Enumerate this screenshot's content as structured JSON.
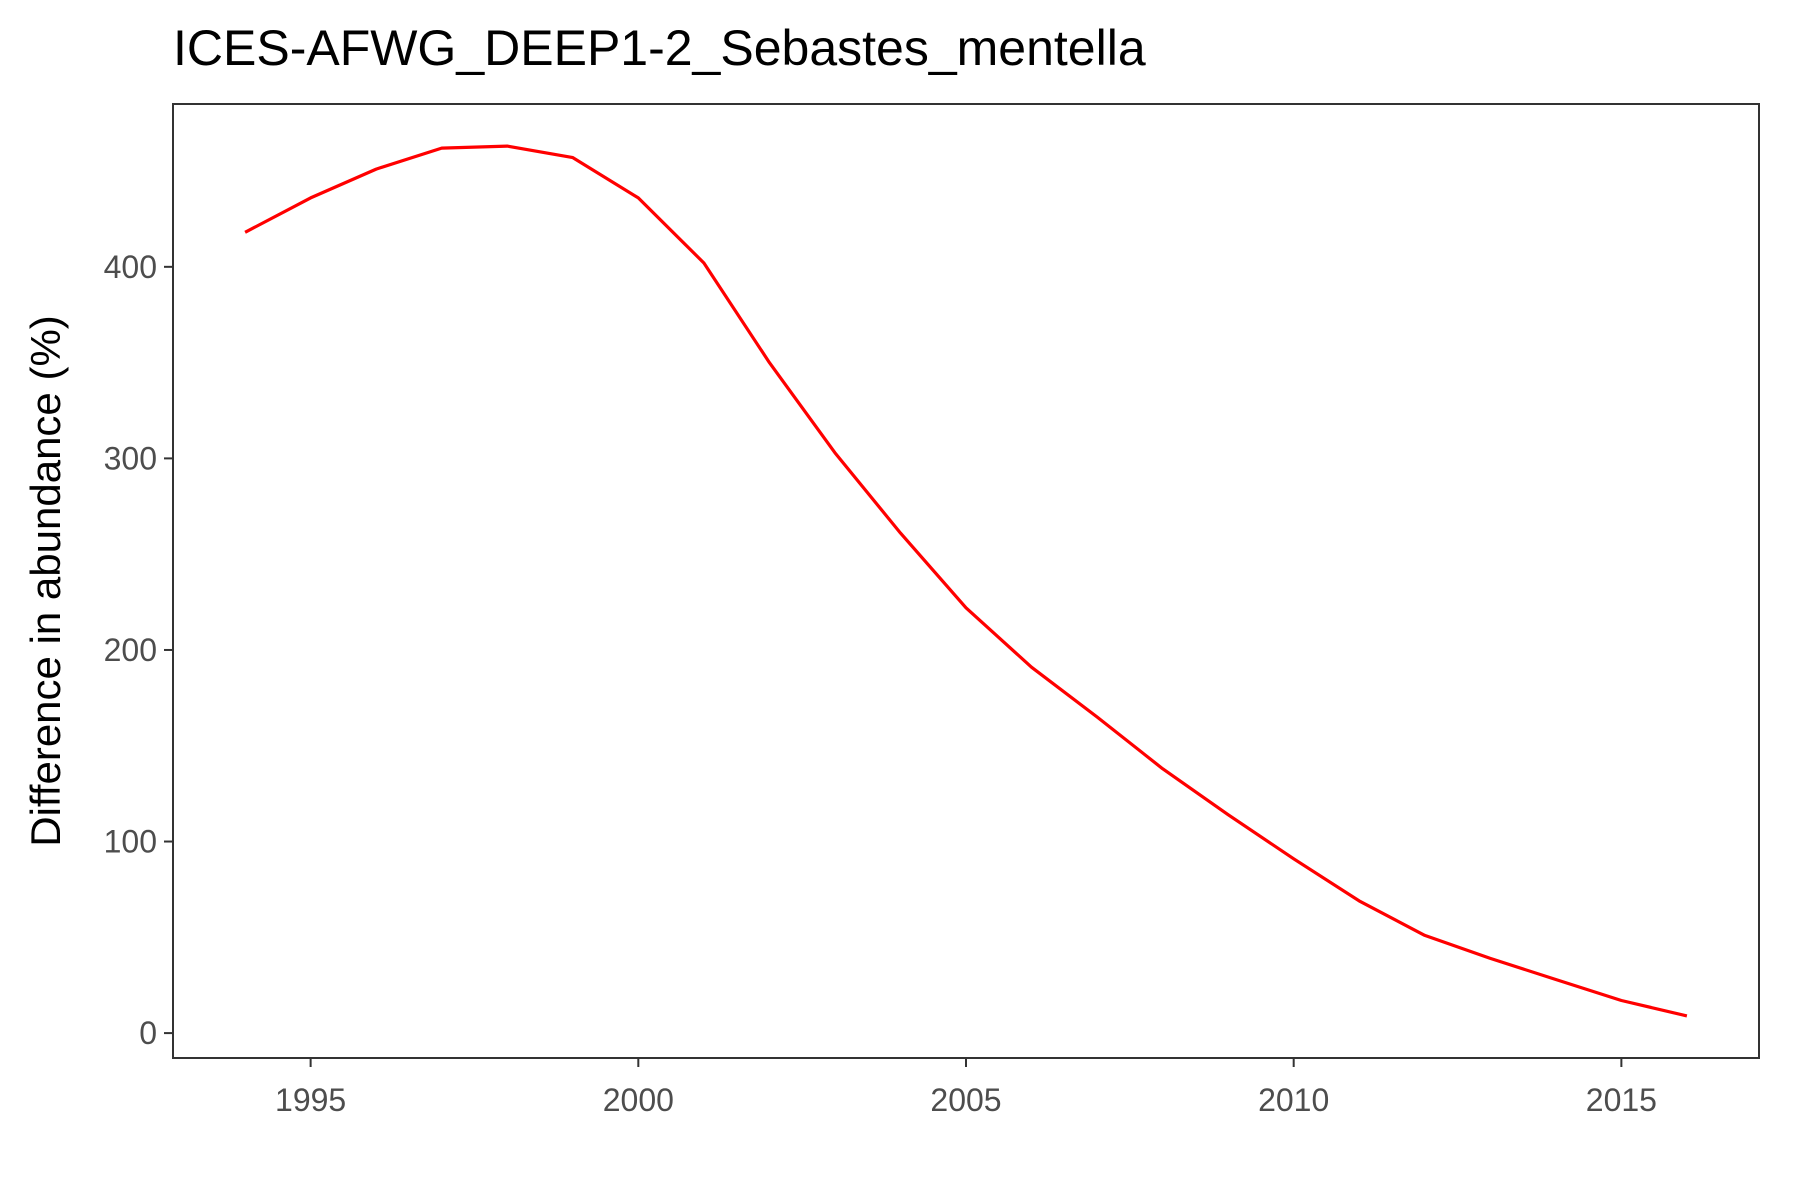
{
  "chart_data": {
    "type": "line",
    "title": "ICES-AFWG_DEEP1-2_Sebastes_mentella",
    "xlabel": "",
    "ylabel": "Difference in abundance (%)",
    "xlim": [
      1992.9,
      2017.1
    ],
    "ylim": [
      -13,
      485
    ],
    "x_ticks": [
      1995,
      2000,
      2005,
      2010,
      2015
    ],
    "y_ticks": [
      0,
      100,
      200,
      300,
      400
    ],
    "x_tick_labels": [
      "1995",
      "2000",
      "2005",
      "2010",
      "2015"
    ],
    "y_tick_labels": [
      "0",
      "100",
      "200",
      "300",
      "400"
    ],
    "grid": false,
    "legend": "none",
    "series": [
      {
        "color": "#ff0000",
        "x": [
          1994,
          1995,
          1996,
          1997,
          1998,
          1999,
          2000,
          2001,
          2002,
          2003,
          2004,
          2005,
          2006,
          2007,
          2008,
          2009,
          2010,
          2011,
          2012,
          2013,
          2014,
          2015,
          2016
        ],
        "y": [
          418,
          436,
          451,
          462,
          463,
          457,
          436,
          402,
          350,
          303,
          261,
          222,
          191,
          165,
          138,
          114,
          91,
          69,
          51,
          39,
          28,
          17,
          9
        ]
      }
    ]
  }
}
